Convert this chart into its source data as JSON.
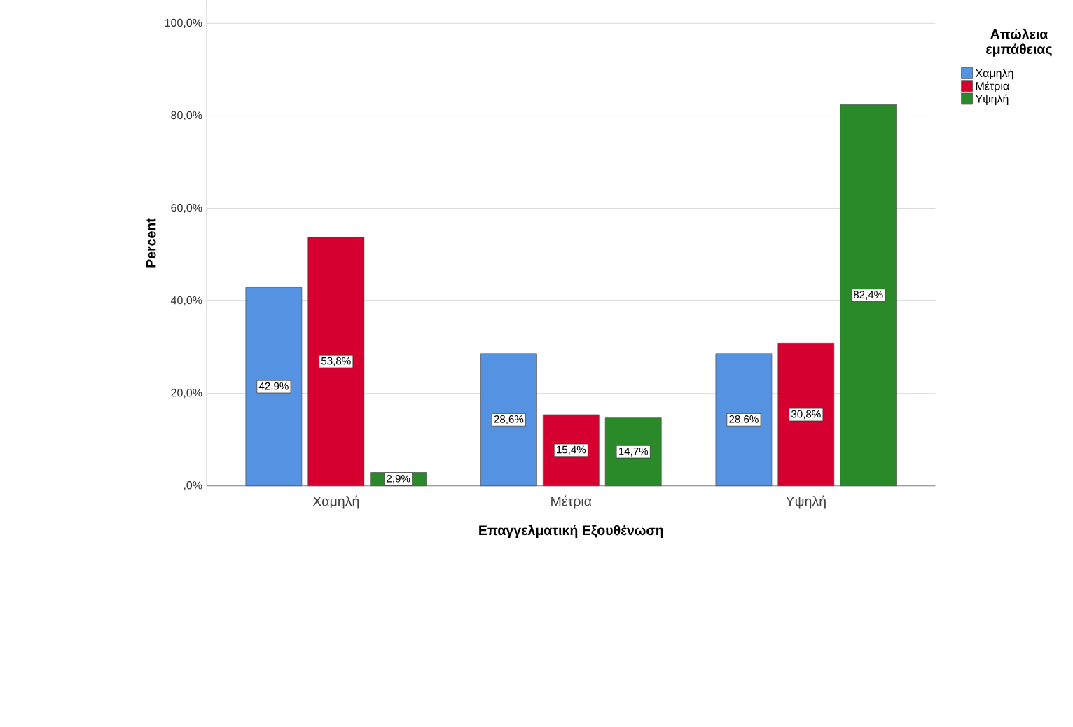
{
  "chart_data": {
    "type": "bar",
    "categories": [
      "Χαμηλή",
      "Μέτρια",
      "Υψηλή"
    ],
    "series": [
      {
        "name": "Χαμηλή",
        "color": "#5592e2",
        "values": [
          42.9,
          28.6,
          28.6
        ],
        "value_labels": [
          "42,9%",
          "28,6%",
          "28,6%"
        ]
      },
      {
        "name": "Μέτρια",
        "color": "#d5002f",
        "values": [
          53.8,
          15.4,
          30.8
        ],
        "value_labels": [
          "53,8%",
          "15,4%",
          "30,8%"
        ]
      },
      {
        "name": "Υψηλή",
        "color": "#2a8a2a",
        "values": [
          2.9,
          14.7,
          82.4
        ],
        "value_labels": [
          "2,9%",
          "14,7%",
          "82,4%"
        ]
      }
    ],
    "xlabel": "Επαγγελματική Εξουθένωση",
    "ylabel": "Percent",
    "legend_title": "Απώλεια εμπάθειας",
    "legend": "right",
    "grid": "y",
    "ylim": [
      0,
      105
    ],
    "yticks": [
      {
        "value": 0,
        "label": ",0%"
      },
      {
        "value": 20,
        "label": "20,0%"
      },
      {
        "value": 40,
        "label": "40,0%"
      },
      {
        "value": 60,
        "label": "60,0%"
      },
      {
        "value": 80,
        "label": "80,0%"
      },
      {
        "value": 100,
        "label": "100,0%"
      }
    ]
  }
}
